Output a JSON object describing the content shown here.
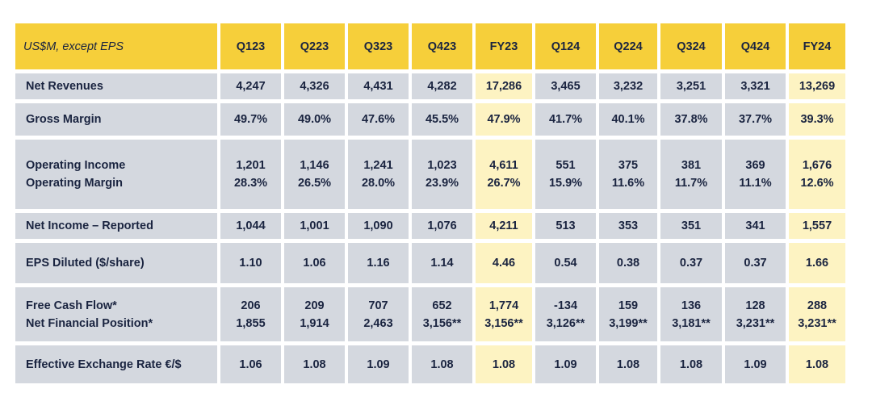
{
  "header": {
    "label": "US$M, except EPS",
    "columns": [
      "Q123",
      "Q223",
      "Q323",
      "Q423",
      "FY23",
      "Q124",
      "Q224",
      "Q324",
      "Q424",
      "FY24"
    ]
  },
  "rows": [
    {
      "labels": [
        "Net Revenues"
      ],
      "cells": [
        [
          "4,247"
        ],
        [
          "4,326"
        ],
        [
          "4,431"
        ],
        [
          "4,282"
        ],
        [
          "17,286"
        ],
        [
          "3,465"
        ],
        [
          "3,232"
        ],
        [
          "3,251"
        ],
        [
          "3,321"
        ],
        [
          "13,269"
        ]
      ]
    },
    {
      "labels": [
        "Gross Margin"
      ],
      "cells": [
        [
          "49.7%"
        ],
        [
          "49.0%"
        ],
        [
          "47.6%"
        ],
        [
          "45.5%"
        ],
        [
          "47.9%"
        ],
        [
          "41.7%"
        ],
        [
          "40.1%"
        ],
        [
          "37.8%"
        ],
        [
          "37.7%"
        ],
        [
          "39.3%"
        ]
      ]
    },
    {
      "labels": [
        "Operating Income",
        "Operating Margin"
      ],
      "cells": [
        [
          "1,201",
          "28.3%"
        ],
        [
          "1,146",
          "26.5%"
        ],
        [
          "1,241",
          "28.0%"
        ],
        [
          "1,023",
          "23.9%"
        ],
        [
          "4,611",
          "26.7%"
        ],
        [
          "551",
          "15.9%"
        ],
        [
          "375",
          "11.6%"
        ],
        [
          "381",
          "11.7%"
        ],
        [
          "369",
          "11.1%"
        ],
        [
          "1,676",
          "12.6%"
        ]
      ]
    },
    {
      "labels": [
        "Net Income – Reported"
      ],
      "cells": [
        [
          "1,044"
        ],
        [
          "1,001"
        ],
        [
          "1,090"
        ],
        [
          "1,076"
        ],
        [
          "4,211"
        ],
        [
          "513"
        ],
        [
          "353"
        ],
        [
          "351"
        ],
        [
          "341"
        ],
        [
          "1,557"
        ]
      ]
    },
    {
      "labels": [
        "EPS Diluted ($/share)"
      ],
      "cells": [
        [
          "1.10"
        ],
        [
          "1.06"
        ],
        [
          "1.16"
        ],
        [
          "1.14"
        ],
        [
          "4.46"
        ],
        [
          "0.54"
        ],
        [
          "0.38"
        ],
        [
          "0.37"
        ],
        [
          "0.37"
        ],
        [
          "1.66"
        ]
      ]
    },
    {
      "labels": [
        "Free Cash Flow*",
        "Net Financial Position*"
      ],
      "cells": [
        [
          "206",
          "1,855"
        ],
        [
          "209",
          "1,914"
        ],
        [
          "707",
          "2,463"
        ],
        [
          "652",
          "3,156**"
        ],
        [
          "1,774",
          "3,156**"
        ],
        [
          "-134",
          "3,126**"
        ],
        [
          "159",
          "3,199**"
        ],
        [
          "136",
          "3,181**"
        ],
        [
          "128",
          "3,231**"
        ],
        [
          "288",
          "3,231**"
        ]
      ]
    },
    {
      "labels": [
        "Effective Exchange Rate €/$"
      ],
      "cells": [
        [
          "1.06"
        ],
        [
          "1.08"
        ],
        [
          "1.09"
        ],
        [
          "1.08"
        ],
        [
          "1.08"
        ],
        [
          "1.09"
        ],
        [
          "1.08"
        ],
        [
          "1.08"
        ],
        [
          "1.09"
        ],
        [
          "1.08"
        ]
      ]
    }
  ],
  "colors": {
    "header_bg": "#f6cf3a",
    "quarter_cell_bg": "#d4d8df",
    "fy_cell_bg": "#fdf3c2",
    "text": "#1a2440"
  }
}
